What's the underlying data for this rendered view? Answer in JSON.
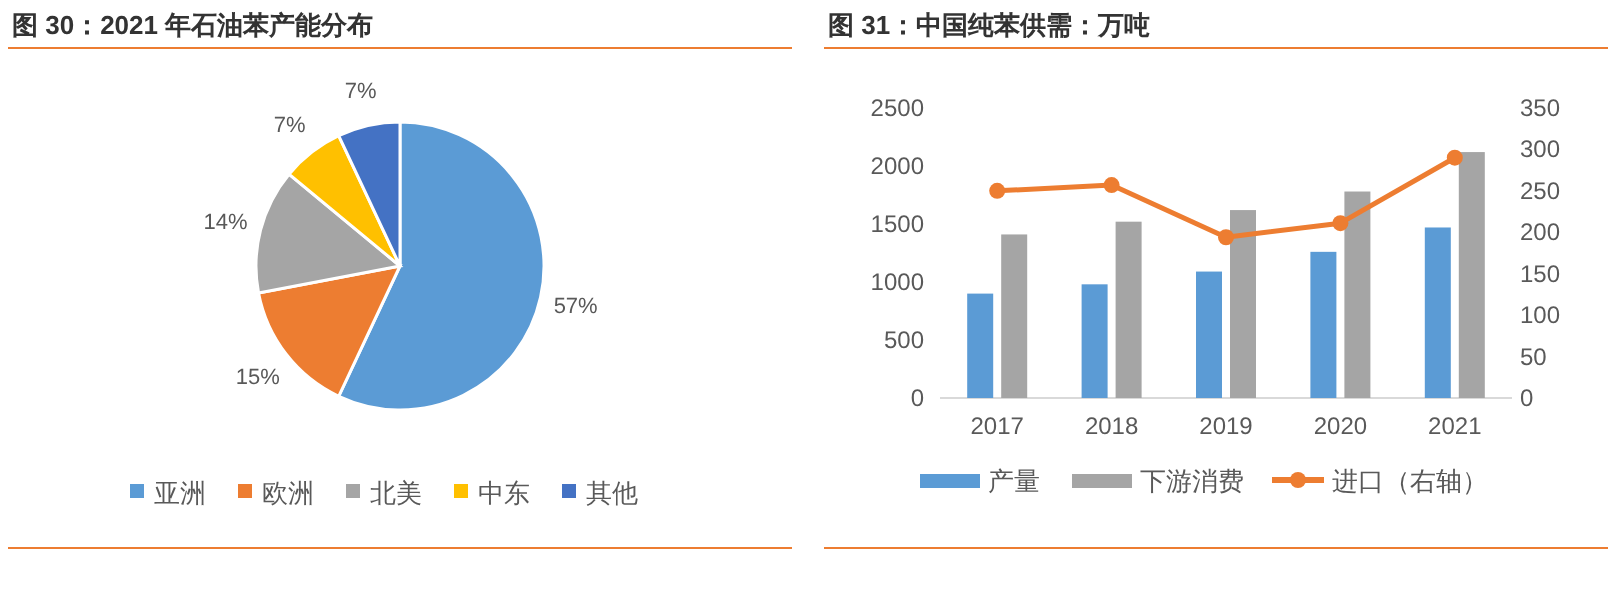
{
  "chart_data": [
    {
      "type": "pie",
      "title": "图 30：2021 年石油苯产能分布",
      "categories": [
        "亚洲",
        "欧洲",
        "北美",
        "中东",
        "其他"
      ],
      "values": [
        57,
        15,
        14,
        7,
        7
      ],
      "value_labels": [
        "57%",
        "15%",
        "14%",
        "7%",
        "7%"
      ],
      "colors": [
        "#5b9bd5",
        "#ed7d31",
        "#a5a5a5",
        "#ffc000",
        "#4472c4"
      ],
      "legend": "bottom"
    },
    {
      "type": "bar",
      "title": "图 31：中国纯苯供需：万吨",
      "categories": [
        "2017",
        "2018",
        "2019",
        "2020",
        "2021"
      ],
      "ylim": [
        0,
        2500
      ],
      "yticks": [
        0,
        500,
        1000,
        1500,
        2000,
        2500
      ],
      "y2lim": [
        0,
        350
      ],
      "y2ticks": [
        0,
        50,
        100,
        150,
        200,
        250,
        300,
        350
      ],
      "grid": false,
      "legend": "bottom",
      "series": [
        {
          "name": "产量",
          "type": "bar",
          "color": "#5b9bd5",
          "values": [
            900,
            980,
            1090,
            1260,
            1470
          ]
        },
        {
          "name": "下游消费",
          "type": "bar",
          "color": "#a5a5a5",
          "values": [
            1410,
            1520,
            1620,
            1780,
            2120
          ]
        },
        {
          "name": "进口（右轴）",
          "type": "line",
          "axis": "y2",
          "marker": "circle",
          "color": "#ed7d31",
          "values": [
            250,
            257,
            194,
            211,
            290
          ]
        }
      ]
    }
  ]
}
